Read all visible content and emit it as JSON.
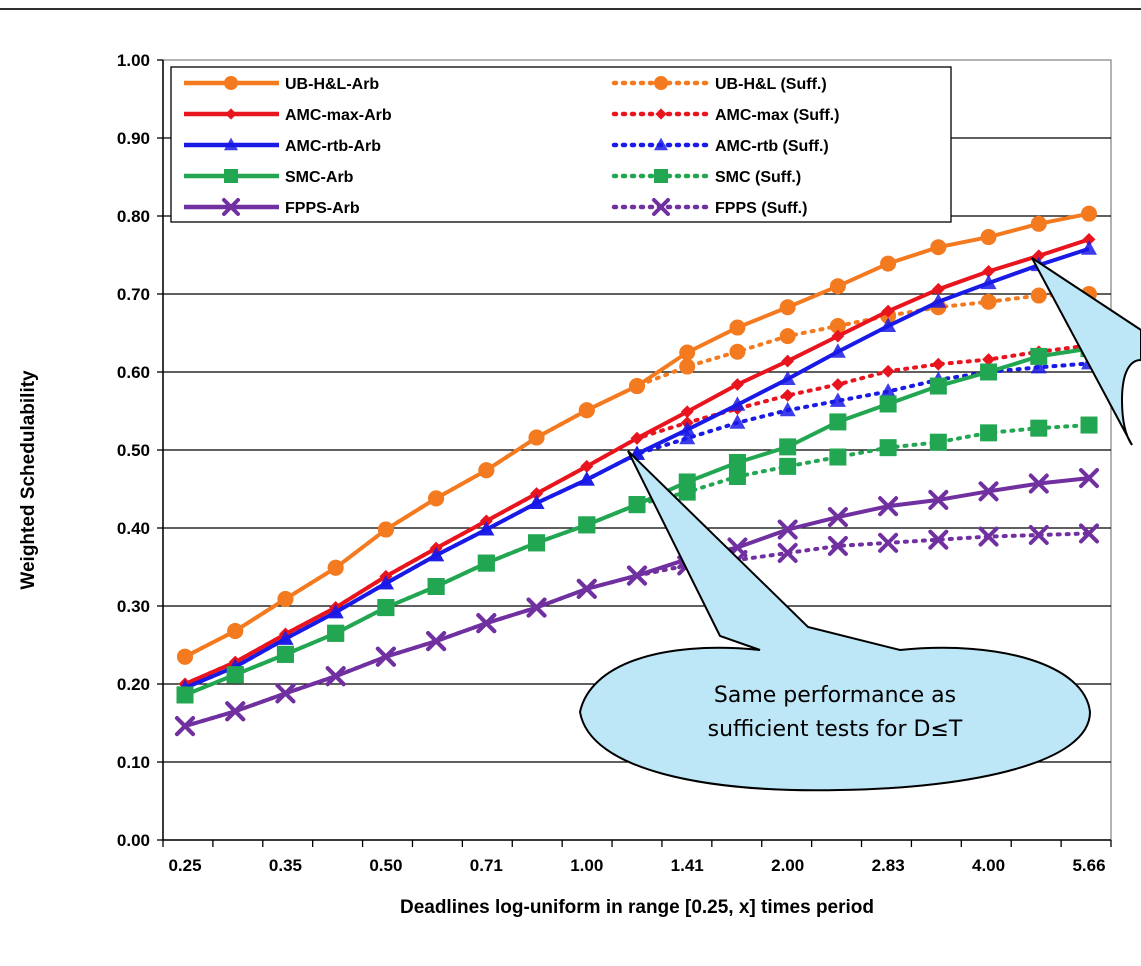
{
  "chart_data": {
    "type": "line",
    "title": "",
    "xlabel": "Deadlines log-uniform in range [0.25, x] times period",
    "ylabel": "Weighted Schedulability",
    "ylim": [
      0,
      1
    ],
    "y_ticks": [
      "0.00",
      "0.10",
      "0.20",
      "0.30",
      "0.40",
      "0.50",
      "0.60",
      "0.70",
      "0.80",
      "0.90",
      "1.00"
    ],
    "x_ticks": [
      "0.25",
      "0.35",
      "0.50",
      "0.71",
      "1.00",
      "1.41",
      "2.00",
      "2.83",
      "4.00",
      "5.66"
    ],
    "x": [
      0.25,
      0.297,
      0.354,
      0.42,
      0.5,
      0.595,
      0.707,
      0.841,
      1.0,
      1.189,
      1.414,
      1.682,
      2.0,
      2.378,
      2.828,
      3.364,
      4.0,
      4.757,
      5.657
    ],
    "grid": "horizontal",
    "legend_position": "top-left",
    "series": [
      {
        "name": "UB-H&L-Arb",
        "color": "#f47a20",
        "dash": "solid",
        "marker": "circle",
        "values": [
          0.235,
          0.268,
          0.309,
          0.349,
          0.398,
          0.438,
          0.474,
          0.516,
          0.551,
          0.582,
          0.625,
          0.657,
          0.683,
          0.71,
          0.739,
          0.76,
          0.773,
          0.79,
          0.803
        ]
      },
      {
        "name": "UB-H&L (Suff.)",
        "color": "#f47a20",
        "dash": "dotted",
        "marker": "circle",
        "values": [
          0.235,
          0.268,
          0.309,
          0.349,
          0.398,
          0.438,
          0.474,
          0.516,
          0.551,
          0.582,
          0.607,
          0.626,
          0.646,
          0.659,
          0.672,
          0.683,
          0.69,
          0.698,
          0.7
        ]
      },
      {
        "name": "AMC-max-Arb",
        "color": "#e8141e",
        "dash": "solid",
        "marker": "diamond",
        "values": [
          0.2,
          0.228,
          0.264,
          0.298,
          0.338,
          0.374,
          0.409,
          0.444,
          0.479,
          0.515,
          0.549,
          0.584,
          0.614,
          0.646,
          0.678,
          0.706,
          0.729,
          0.749,
          0.77
        ]
      },
      {
        "name": "AMC-max (Suff.)",
        "color": "#e8141e",
        "dash": "dotted",
        "marker": "diamond",
        "values": [
          0.2,
          0.228,
          0.264,
          0.298,
          0.338,
          0.374,
          0.409,
          0.444,
          0.479,
          0.515,
          0.535,
          0.553,
          0.57,
          0.584,
          0.601,
          0.61,
          0.616,
          0.626,
          0.634
        ]
      },
      {
        "name": "AMC-rtb-Arb",
        "color": "#1a1ae6",
        "dash": "solid",
        "marker": "triangle",
        "values": [
          0.195,
          0.222,
          0.258,
          0.292,
          0.329,
          0.365,
          0.398,
          0.432,
          0.462,
          0.495,
          0.526,
          0.558,
          0.591,
          0.626,
          0.659,
          0.69,
          0.714,
          0.737,
          0.758
        ]
      },
      {
        "name": "AMC-rtb (Suff.)",
        "color": "#1a1ae6",
        "dash": "dotted",
        "marker": "triangle",
        "values": [
          0.195,
          0.222,
          0.258,
          0.292,
          0.329,
          0.365,
          0.398,
          0.432,
          0.462,
          0.495,
          0.515,
          0.535,
          0.551,
          0.563,
          0.575,
          0.59,
          0.6,
          0.606,
          0.611
        ]
      },
      {
        "name": "SMC-Arb",
        "color": "#22a652",
        "dash": "solid",
        "marker": "square",
        "values": [
          0.186,
          0.212,
          0.238,
          0.265,
          0.298,
          0.325,
          0.355,
          0.381,
          0.404,
          0.43,
          0.459,
          0.484,
          0.504,
          0.536,
          0.559,
          0.582,
          0.6,
          0.62,
          0.63
        ]
      },
      {
        "name": "SMC (Suff.)",
        "color": "#22a652",
        "dash": "dotted",
        "marker": "square",
        "values": [
          0.186,
          0.212,
          0.238,
          0.265,
          0.298,
          0.325,
          0.355,
          0.381,
          0.404,
          0.43,
          0.446,
          0.466,
          0.479,
          0.491,
          0.503,
          0.51,
          0.522,
          0.528,
          0.532
        ]
      },
      {
        "name": "FPPS-Arb",
        "color": "#7030a0",
        "dash": "solid",
        "marker": "x",
        "values": [
          0.146,
          0.165,
          0.188,
          0.21,
          0.235,
          0.255,
          0.278,
          0.298,
          0.322,
          0.339,
          0.36,
          0.375,
          0.398,
          0.414,
          0.428,
          0.436,
          0.447,
          0.457,
          0.464
        ]
      },
      {
        "name": "FPPS (Suff.)",
        "color": "#7030a0",
        "dash": "dotted",
        "marker": "x",
        "values": [
          0.146,
          0.165,
          0.188,
          0.21,
          0.235,
          0.255,
          0.278,
          0.298,
          0.322,
          0.339,
          0.352,
          0.359,
          0.368,
          0.377,
          0.381,
          0.385,
          0.389,
          0.391,
          0.393
        ]
      }
    ],
    "annotations": [
      {
        "text_lines": [
          "Same performance as",
          "sufficient tests for D≤T"
        ]
      }
    ]
  }
}
